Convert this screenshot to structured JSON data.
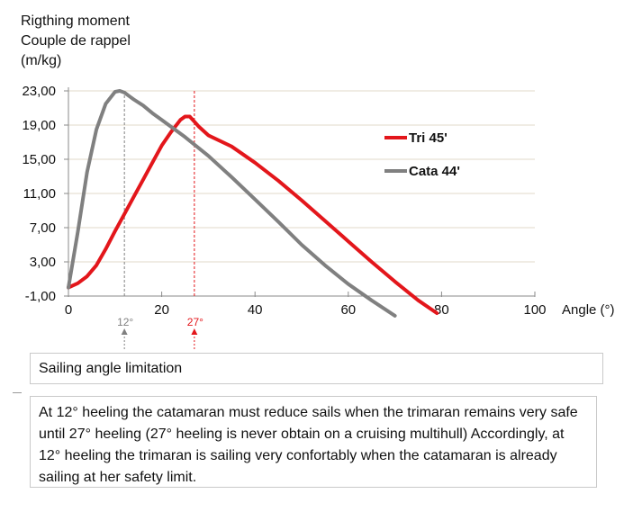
{
  "chart_data": {
    "type": "line",
    "title_lines": [
      "Rigthing moment",
      "Couple de rappel",
      "(m/kg)"
    ],
    "xlabel": "Angle (°)",
    "ylabel": "Rigthing moment",
    "xlim": [
      0,
      100
    ],
    "ylim": [
      -1,
      23
    ],
    "xticks": [
      0,
      20,
      40,
      60,
      80,
      100
    ],
    "x_tick_labels": [
      "0",
      "20",
      "40",
      "60",
      "80",
      "100"
    ],
    "yticks": [
      -1,
      3,
      7,
      11,
      15,
      19,
      23
    ],
    "y_tick_labels": [
      "-1,00",
      "3,00",
      "7,00",
      "11,00",
      "15,00",
      "19,00",
      "23,00"
    ],
    "grid": true,
    "legend_position": "right",
    "series": [
      {
        "name": "Tri 45'",
        "color": "#e3161b",
        "x": [
          0,
          2,
          4,
          6,
          8,
          10,
          12,
          14,
          16,
          18,
          20,
          22,
          24,
          25,
          26,
          27,
          28,
          30,
          35,
          40,
          45,
          50,
          55,
          60,
          65,
          70,
          75,
          79
        ],
        "y": [
          0.0,
          0.5,
          1.3,
          2.6,
          4.5,
          6.6,
          8.6,
          10.6,
          12.6,
          14.6,
          16.6,
          18.2,
          19.6,
          20.0,
          20.0,
          19.4,
          18.8,
          17.8,
          16.5,
          14.6,
          12.5,
          10.2,
          7.8,
          5.4,
          3.0,
          0.7,
          -1.5,
          -3.0
        ]
      },
      {
        "name": "Cata 44'",
        "color": "#808080",
        "x": [
          0,
          2,
          4,
          6,
          8,
          10,
          11,
          12,
          13,
          14,
          16,
          18,
          20,
          25,
          30,
          35,
          40,
          45,
          50,
          55,
          60,
          65,
          70
        ],
        "y": [
          0.0,
          6.5,
          13.5,
          18.5,
          21.5,
          22.9,
          23.0,
          22.8,
          22.4,
          22.0,
          21.3,
          20.4,
          19.6,
          17.6,
          15.4,
          12.9,
          10.3,
          7.7,
          5.0,
          2.6,
          0.4,
          -1.5,
          -3.3
        ]
      }
    ],
    "markers": [
      {
        "x": 12,
        "label": "12°",
        "color": "#808080"
      },
      {
        "x": 27,
        "label": "27°",
        "color": "#e3161b"
      }
    ]
  },
  "limit_text": "Sailing angle limitation",
  "note_text": "At 12° heeling  the catamaran must reduce sails when the trimaran remains very safe until 27° heeling (27° heeling is never obtain on a cruising multihull) Accordingly, at 12° heeling the trimaran is sailing very confortably when the catamaran is already sailing at her safety limit."
}
